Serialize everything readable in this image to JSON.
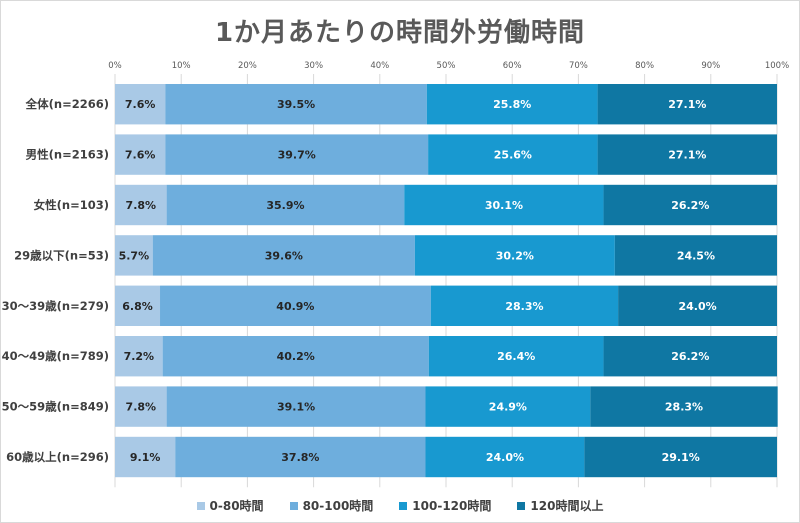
{
  "chart_data": {
    "type": "bar",
    "orientation": "horizontal",
    "stacked": true,
    "percent_stacked": true,
    "title": "1か月あたりの時間外労働時間",
    "categories": [
      "全体(n=2266)",
      "男性(n=2163)",
      "女性(n=103)",
      "29歳以下(n=53)",
      "30～39歳(n=279)",
      "40～49歳(n=789)",
      "50～59歳(n=849)",
      "60歳以上(n=296)"
    ],
    "series": [
      {
        "name": "0-80時間",
        "color": "#a9c9e6",
        "values": [
          7.6,
          7.6,
          7.8,
          5.7,
          6.8,
          7.2,
          7.8,
          9.1
        ]
      },
      {
        "name": "80-100時間",
        "color": "#6eaedd",
        "values": [
          39.5,
          39.7,
          35.9,
          39.6,
          40.9,
          40.2,
          39.1,
          37.8
        ]
      },
      {
        "name": "100-120時間",
        "color": "#1899d0",
        "values": [
          25.8,
          25.6,
          30.1,
          30.2,
          28.3,
          26.4,
          24.9,
          24.0
        ]
      },
      {
        "name": "120時間以上",
        "color": "#0f77a3",
        "values": [
          27.1,
          27.1,
          26.2,
          24.5,
          24.0,
          26.2,
          28.3,
          29.1
        ]
      }
    ],
    "xticks": [
      "0%",
      "10%",
      "20%",
      "30%",
      "40%",
      "50%",
      "60%",
      "70%",
      "80%",
      "90%",
      "100%"
    ],
    "xlim": [
      0,
      100
    ],
    "legend_position": "bottom",
    "grid": true
  }
}
